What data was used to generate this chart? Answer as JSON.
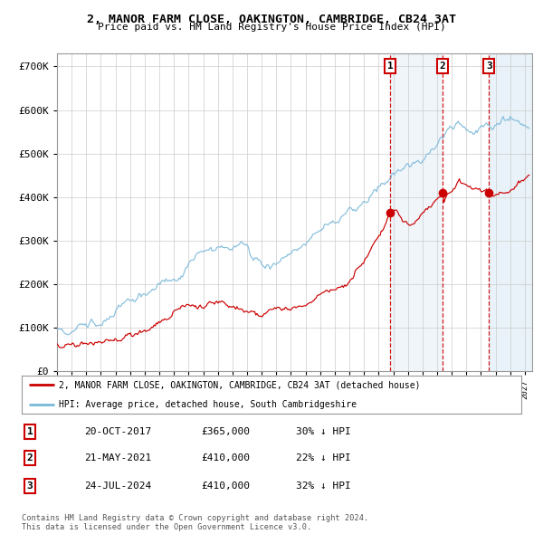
{
  "title": "2, MANOR FARM CLOSE, OAKINGTON, CAMBRIDGE, CB24 3AT",
  "subtitle": "Price paid vs. HM Land Registry's House Price Index (HPI)",
  "hpi_color": "#7ab8d9",
  "price_color": "#cc0000",
  "bg_color": "#ffffff",
  "grid_color": "#cccccc",
  "ylim": [
    0,
    730000
  ],
  "yticks": [
    0,
    100000,
    200000,
    300000,
    400000,
    500000,
    600000,
    700000
  ],
  "ytick_labels": [
    "£0",
    "£100K",
    "£200K",
    "£300K",
    "£400K",
    "£500K",
    "£600K",
    "£700K"
  ],
  "sale_dates": [
    "20-OCT-2017",
    "21-MAY-2021",
    "24-JUL-2024"
  ],
  "sale_prices": [
    365000,
    410000,
    410000
  ],
  "sale_hpi_pct": [
    "30% ↓ HPI",
    "22% ↓ HPI",
    "32% ↓ HPI"
  ],
  "sale_years": [
    2017.8,
    2021.38,
    2024.55
  ],
  "legend_property": "2, MANOR FARM CLOSE, OAKINGTON, CAMBRIDGE, CB24 3AT (detached house)",
  "legend_hpi": "HPI: Average price, detached house, South Cambridgeshire",
  "footnote": "Contains HM Land Registry data © Crown copyright and database right 2024.\nThis data is licensed under the Open Government Licence v3.0.",
  "xstart": 1995.0,
  "xend": 2027.5
}
